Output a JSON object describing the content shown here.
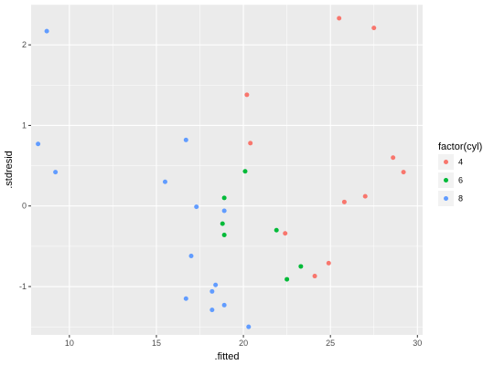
{
  "chart_data": {
    "type": "scatter",
    "xlabel": ".fitted",
    "ylabel": ".stdresid",
    "xlim": [
      7.8,
      30.3
    ],
    "ylim": [
      -1.6,
      2.5
    ],
    "x_ticks": [
      10,
      15,
      20,
      25,
      30
    ],
    "y_ticks": [
      -1,
      0,
      1,
      2
    ],
    "x_tick_labels": [
      "10",
      "15",
      "20",
      "25",
      "30"
    ],
    "y_tick_labels": [
      "-1",
      "0",
      "1",
      "2"
    ],
    "grid": true,
    "legend": {
      "title": "factor(cyl)",
      "position": "right",
      "entries": [
        "4",
        "6",
        "8"
      ]
    },
    "series": [
      {
        "name": "4",
        "color": "#F8766D",
        "points": [
          {
            "x": 25.5,
            "y": 2.33
          },
          {
            "x": 27.5,
            "y": 2.21
          },
          {
            "x": 20.2,
            "y": 1.38
          },
          {
            "x": 20.4,
            "y": 0.78
          },
          {
            "x": 28.6,
            "y": 0.6
          },
          {
            "x": 29.2,
            "y": 0.42
          },
          {
            "x": 25.8,
            "y": 0.05
          },
          {
            "x": 27.0,
            "y": 0.12
          },
          {
            "x": 22.4,
            "y": -0.34
          },
          {
            "x": 24.9,
            "y": -0.71
          },
          {
            "x": 24.1,
            "y": -0.87
          }
        ]
      },
      {
        "name": "6",
        "color": "#00BA38",
        "points": [
          {
            "x": 20.1,
            "y": 0.43
          },
          {
            "x": 18.9,
            "y": 0.1
          },
          {
            "x": 18.8,
            "y": -0.22
          },
          {
            "x": 18.9,
            "y": -0.36
          },
          {
            "x": 21.9,
            "y": -0.3
          },
          {
            "x": 23.3,
            "y": -0.75
          },
          {
            "x": 22.5,
            "y": -0.91
          }
        ]
      },
      {
        "name": "8",
        "color": "#619CFF",
        "points": [
          {
            "x": 8.7,
            "y": 2.17
          },
          {
            "x": 8.2,
            "y": 0.77
          },
          {
            "x": 9.2,
            "y": 0.42
          },
          {
            "x": 16.7,
            "y": 0.82
          },
          {
            "x": 15.5,
            "y": 0.3
          },
          {
            "x": 17.3,
            "y": -0.01
          },
          {
            "x": 18.9,
            "y": -0.06
          },
          {
            "x": 17.0,
            "y": -0.62
          },
          {
            "x": 18.4,
            "y": -0.98
          },
          {
            "x": 18.2,
            "y": -1.06
          },
          {
            "x": 16.7,
            "y": -1.15
          },
          {
            "x": 18.9,
            "y": -1.23
          },
          {
            "x": 18.2,
            "y": -1.29
          },
          {
            "x": 20.3,
            "y": -1.5
          }
        ]
      }
    ]
  }
}
